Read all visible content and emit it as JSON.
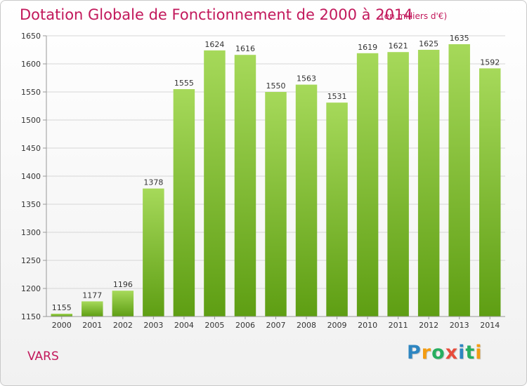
{
  "header": {
    "title": "Dotation Globale de Fonctionnement de 2000 à 2014",
    "unit": "(en milliers d'€)"
  },
  "commune": "VARS",
  "brand": {
    "letters": [
      "P",
      "r",
      "o",
      "x",
      "i",
      "t",
      "i"
    ],
    "colors": [
      "#2e86c1",
      "#f39c12",
      "#27ae60",
      "#e74c3c",
      "#2e86c1",
      "#27ae60",
      "#f39c12"
    ]
  },
  "colors": {
    "title": "#c2185b",
    "bar_top": "#a6d95a",
    "bar_bottom": "#5e9e13",
    "grid": "#d6d6d6"
  },
  "chart_data": {
    "type": "bar",
    "title": "Dotation Globale de Fonctionnement de 2000 à 2014",
    "subtitle": "(en milliers d'€)",
    "categories": [
      "2000",
      "2001",
      "2002",
      "2003",
      "2004",
      "2005",
      "2006",
      "2007",
      "2008",
      "2009",
      "2010",
      "2011",
      "2012",
      "2013",
      "2014"
    ],
    "values": [
      1155,
      1177,
      1196,
      1378,
      1555,
      1624,
      1616,
      1550,
      1563,
      1531,
      1619,
      1621,
      1625,
      1635,
      1592
    ],
    "ylim": [
      1150,
      1650
    ],
    "yticks": [
      1150,
      1200,
      1250,
      1300,
      1350,
      1400,
      1450,
      1500,
      1550,
      1600,
      1650
    ],
    "grid": true,
    "xlabel": "",
    "ylabel": ""
  }
}
